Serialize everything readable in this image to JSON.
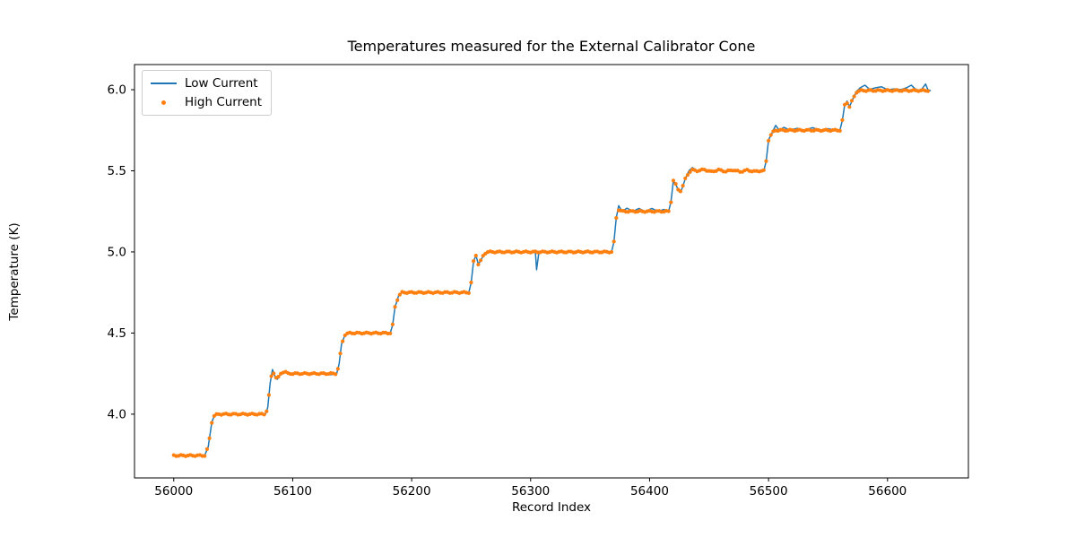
{
  "window": {
    "background": "#ffffff"
  },
  "chart_data": {
    "type": "line",
    "title": "Temperatures measured for the External Calibrator Cone",
    "xlabel": "Record Index",
    "ylabel": "Temperature (K)",
    "xlim": [
      55967,
      56668
    ],
    "ylim": [
      3.607,
      6.155
    ],
    "xticks": [
      56000,
      56100,
      56200,
      56300,
      56400,
      56500,
      56600
    ],
    "xtick_labels": [
      "56000",
      "56100",
      "56200",
      "56300",
      "56400",
      "56500",
      "56600"
    ],
    "yticks": [
      4.0,
      4.5,
      5.0,
      5.5,
      6.0
    ],
    "ytick_labels": [
      "4.0",
      "4.5",
      "5.0",
      "5.5",
      "6.0"
    ],
    "grid": false,
    "axes_color": "#000000",
    "plot_background": "#ffffff",
    "step_levels_K": [
      3.75,
      4.0,
      4.25,
      4.5,
      4.75,
      5.0,
      5.25,
      5.5,
      5.75,
      6.0
    ],
    "legend": {
      "position": "upper left",
      "entries": [
        {
          "label": "Low Current",
          "color": "#1f77b4",
          "marker": "line"
        },
        {
          "label": "High Current",
          "color": "#ff7f0e",
          "marker": "dot"
        }
      ]
    },
    "series": [
      {
        "name": "Low Current",
        "type": "line",
        "color": "#1f77b4",
        "linewidth": 1.5,
        "points": [
          [
            56000,
            3.745
          ],
          [
            56008,
            3.745
          ],
          [
            56016,
            3.745
          ],
          [
            56026,
            3.745
          ],
          [
            56029,
            3.8
          ],
          [
            56032,
            3.95
          ],
          [
            56034,
            3.99
          ],
          [
            56037,
            4.0
          ],
          [
            56048,
            4.0
          ],
          [
            56058,
            4.0
          ],
          [
            56068,
            4.0
          ],
          [
            56077,
            4.0
          ],
          [
            56079,
            4.04
          ],
          [
            56081,
            4.19
          ],
          [
            56083,
            4.275
          ],
          [
            56085,
            4.235
          ],
          [
            56087,
            4.215
          ],
          [
            56090,
            4.25
          ],
          [
            56093,
            4.265
          ],
          [
            56096,
            4.25
          ],
          [
            56106,
            4.25
          ],
          [
            56116,
            4.25
          ],
          [
            56126,
            4.25
          ],
          [
            56132,
            4.243
          ],
          [
            56137,
            4.25
          ],
          [
            56139,
            4.31
          ],
          [
            56141,
            4.43
          ],
          [
            56144,
            4.49
          ],
          [
            56147,
            4.5
          ],
          [
            56158,
            4.5
          ],
          [
            56170,
            4.5
          ],
          [
            56182,
            4.5
          ],
          [
            56184,
            4.55
          ],
          [
            56186,
            4.66
          ],
          [
            56189,
            4.73
          ],
          [
            56192,
            4.75
          ],
          [
            56204,
            4.75
          ],
          [
            56218,
            4.75
          ],
          [
            56232,
            4.75
          ],
          [
            56248,
            4.75
          ],
          [
            56250,
            4.81
          ],
          [
            56252,
            4.94
          ],
          [
            56254,
            4.98
          ],
          [
            56256,
            4.925
          ],
          [
            56258,
            4.945
          ],
          [
            56261,
            4.99
          ],
          [
            56264,
            5.0
          ],
          [
            56276,
            5.0
          ],
          [
            56290,
            5.0
          ],
          [
            56302,
            5.0
          ],
          [
            56304,
            5.0
          ],
          [
            56305,
            4.89
          ],
          [
            56307,
            5.0
          ],
          [
            56318,
            5.0
          ],
          [
            56332,
            5.0
          ],
          [
            56346,
            5.0
          ],
          [
            56358,
            5.0
          ],
          [
            56368,
            5.0
          ],
          [
            56370,
            5.06
          ],
          [
            56372,
            5.21
          ],
          [
            56374,
            5.285
          ],
          [
            56377,
            5.25
          ],
          [
            56381,
            5.27
          ],
          [
            56386,
            5.25
          ],
          [
            56391,
            5.268
          ],
          [
            56396,
            5.25
          ],
          [
            56402,
            5.268
          ],
          [
            56407,
            5.25
          ],
          [
            56412,
            5.262
          ],
          [
            56416,
            5.25
          ],
          [
            56418,
            5.31
          ],
          [
            56420,
            5.44
          ],
          [
            56422,
            5.415
          ],
          [
            56425,
            5.37
          ],
          [
            56427,
            5.385
          ],
          [
            56430,
            5.45
          ],
          [
            56433,
            5.5
          ],
          [
            56436,
            5.52
          ],
          [
            56440,
            5.5
          ],
          [
            56446,
            5.512
          ],
          [
            56452,
            5.492
          ],
          [
            56458,
            5.51
          ],
          [
            56464,
            5.495
          ],
          [
            56470,
            5.508
          ],
          [
            56476,
            5.492
          ],
          [
            56482,
            5.506
          ],
          [
            56488,
            5.494
          ],
          [
            56493,
            5.5
          ],
          [
            56496,
            5.5
          ],
          [
            56498,
            5.56
          ],
          [
            56500,
            5.69
          ],
          [
            56503,
            5.735
          ],
          [
            56506,
            5.78
          ],
          [
            56509,
            5.75
          ],
          [
            56513,
            5.768
          ],
          [
            56518,
            5.75
          ],
          [
            56524,
            5.762
          ],
          [
            56530,
            5.75
          ],
          [
            56537,
            5.766
          ],
          [
            56543,
            5.75
          ],
          [
            56550,
            5.76
          ],
          [
            56556,
            5.75
          ],
          [
            56560,
            5.75
          ],
          [
            56562,
            5.81
          ],
          [
            56564,
            5.905
          ],
          [
            56566,
            5.93
          ],
          [
            56568,
            5.895
          ],
          [
            56571,
            5.945
          ],
          [
            56574,
            5.99
          ],
          [
            56577,
            6.012
          ],
          [
            56581,
            6.028
          ],
          [
            56585,
            6.002
          ],
          [
            56590,
            6.012
          ],
          [
            56595,
            6.018
          ],
          [
            56600,
            6.0
          ],
          [
            56606,
            6.005
          ],
          [
            56611,
            6.0
          ],
          [
            56616,
            6.012
          ],
          [
            56620,
            6.028
          ],
          [
            56624,
            6.0
          ],
          [
            56628,
            5.995
          ],
          [
            56632,
            6.035
          ],
          [
            56634,
            6.0
          ],
          [
            56636,
            5.995
          ]
        ]
      },
      {
        "name": "High Current",
        "type": "scatter",
        "color": "#ff7f0e",
        "marker_radius": 2.1,
        "sample_step_x": 2,
        "jitter_K": 0.004,
        "base_points": [
          [
            56000,
            3.745
          ],
          [
            56026,
            3.745
          ],
          [
            56029,
            3.8
          ],
          [
            56032,
            3.95
          ],
          [
            56034,
            3.99
          ],
          [
            56037,
            4.0
          ],
          [
            56077,
            4.0
          ],
          [
            56079,
            4.04
          ],
          [
            56081,
            4.19
          ],
          [
            56083,
            4.275
          ],
          [
            56085,
            4.235
          ],
          [
            56087,
            4.215
          ],
          [
            56090,
            4.25
          ],
          [
            56093,
            4.265
          ],
          [
            56096,
            4.25
          ],
          [
            56137,
            4.25
          ],
          [
            56139,
            4.31
          ],
          [
            56141,
            4.43
          ],
          [
            56144,
            4.49
          ],
          [
            56147,
            4.5
          ],
          [
            56182,
            4.5
          ],
          [
            56184,
            4.55
          ],
          [
            56186,
            4.66
          ],
          [
            56189,
            4.73
          ],
          [
            56192,
            4.75
          ],
          [
            56248,
            4.75
          ],
          [
            56250,
            4.81
          ],
          [
            56252,
            4.94
          ],
          [
            56254,
            4.98
          ],
          [
            56256,
            4.925
          ],
          [
            56258,
            4.945
          ],
          [
            56261,
            4.99
          ],
          [
            56264,
            5.0
          ],
          [
            56368,
            5.0
          ],
          [
            56370,
            5.06
          ],
          [
            56372,
            5.21
          ],
          [
            56374,
            5.26
          ],
          [
            56377,
            5.25
          ],
          [
            56416,
            5.25
          ],
          [
            56418,
            5.31
          ],
          [
            56420,
            5.44
          ],
          [
            56422,
            5.415
          ],
          [
            56425,
            5.37
          ],
          [
            56427,
            5.385
          ],
          [
            56430,
            5.45
          ],
          [
            56433,
            5.49
          ],
          [
            56436,
            5.505
          ],
          [
            56440,
            5.5
          ],
          [
            56446,
            5.508
          ],
          [
            56452,
            5.494
          ],
          [
            56458,
            5.506
          ],
          [
            56464,
            5.496
          ],
          [
            56470,
            5.505
          ],
          [
            56476,
            5.494
          ],
          [
            56482,
            5.504
          ],
          [
            56488,
            5.496
          ],
          [
            56493,
            5.5
          ],
          [
            56496,
            5.5
          ],
          [
            56498,
            5.56
          ],
          [
            56500,
            5.69
          ],
          [
            56503,
            5.735
          ],
          [
            56506,
            5.75
          ],
          [
            56560,
            5.75
          ],
          [
            56562,
            5.81
          ],
          [
            56564,
            5.905
          ],
          [
            56566,
            5.92
          ],
          [
            56568,
            5.895
          ],
          [
            56571,
            5.945
          ],
          [
            56574,
            5.985
          ],
          [
            56577,
            5.995
          ],
          [
            56634,
            5.995
          ]
        ]
      }
    ]
  }
}
